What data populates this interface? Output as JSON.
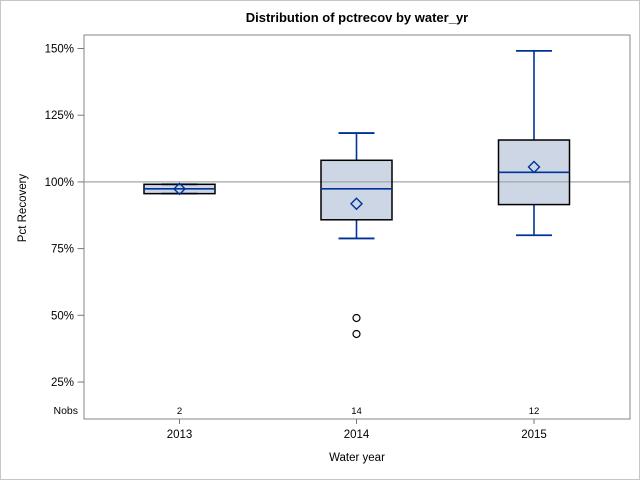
{
  "chart_data": {
    "type": "boxplot",
    "title": "Distribution of pctrecov by water_yr",
    "xlabel": "Water year",
    "ylabel": "Pct Recovery",
    "y_ticks": [
      150,
      125,
      100,
      75,
      50,
      25
    ],
    "y_tick_suffix": "%",
    "ylim": [
      10,
      155
    ],
    "reference_line": 100,
    "grid": "off",
    "legend": "none",
    "nobs_label": "Nobs",
    "categories": [
      "2013",
      "2014",
      "2015"
    ],
    "series": [
      {
        "category": "2013",
        "nobs": 2,
        "whisker_low": 95.6,
        "q1": 95.6,
        "median": 97.4,
        "q3": 99.1,
        "whisker_high": 99.1,
        "mean": 97.4,
        "outliers": []
      },
      {
        "category": "2014",
        "nobs": 14,
        "whisker_low": 78.8,
        "q1": 85.8,
        "median": 97.4,
        "q3": 108.1,
        "whisker_high": 118.3,
        "mean": 91.8,
        "outliers": [
          49,
          43
        ]
      },
      {
        "category": "2015",
        "nobs": 12,
        "whisker_low": 80.0,
        "q1": 91.5,
        "median": 103.6,
        "q3": 115.7,
        "whisker_high": 149.1,
        "mean": 105.6,
        "outliers": []
      }
    ],
    "colors": {
      "box_fill": "#ccd6e4",
      "box_border": "#000000",
      "line": "#003399",
      "reference_line": "#a6a6a6",
      "frame_border": "#868686",
      "tick": "#777777",
      "outlier_stroke": "#000000",
      "text": "#000000"
    }
  }
}
